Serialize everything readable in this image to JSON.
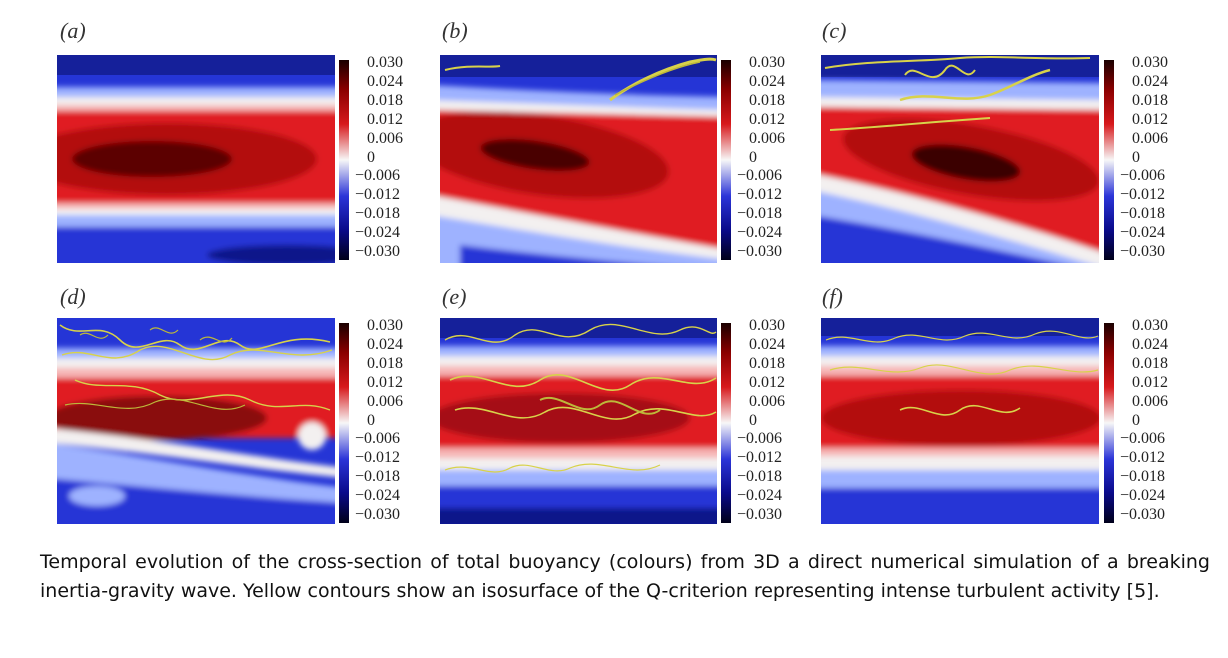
{
  "figure": {
    "panels": [
      {
        "label": "(a)",
        "stage": 0
      },
      {
        "label": "(b)",
        "stage": 1
      },
      {
        "label": "(c)",
        "stage": 2
      },
      {
        "label": "(d)",
        "stage": 3
      },
      {
        "label": "(e)",
        "stage": 4
      },
      {
        "label": "(f)",
        "stage": 5
      }
    ],
    "colorbar": {
      "ticks": [
        "0.030",
        "0.024",
        "0.018",
        "0.012",
        "0.006",
        "0",
        "−0.006",
        "−0.012",
        "−0.018",
        "−0.024",
        "−0.030"
      ],
      "colors": {
        "max": "#1a0000",
        "high": "#d7191c",
        "mid": "#f7f7f7",
        "low": "#2c35d8",
        "min": "#00001a"
      }
    },
    "isosurface_color": "#d8d24a"
  },
  "caption": "Temporal evolution of the cross-section of total buoyancy (colours) from 3D a direct numerical simulation of a breaking inertia-gravity wave.  Yellow contours show an isosurface of the Q-criterion representing intense turbulent activity [5]."
}
